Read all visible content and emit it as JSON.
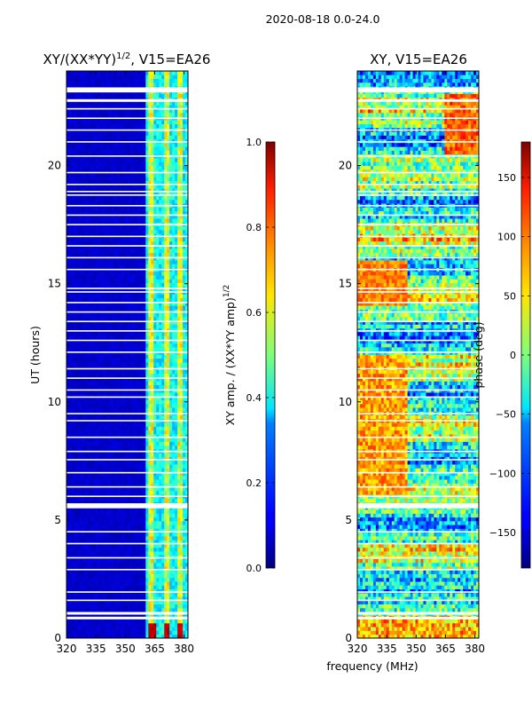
{
  "figure_title": "2020-08-18 0.0-24.0",
  "xlabel": "frequency (MHz)",
  "chart_data": [
    {
      "type": "heatmap",
      "title_main": "XY/(XX*YY)",
      "title_sup": "1/2",
      "title_rest": ", V15=EA26",
      "ylabel": "UT (hours)",
      "xlim": [
        320,
        382
      ],
      "ylim": [
        0,
        24
      ],
      "x_ticks": [
        320,
        335,
        350,
        365,
        380
      ],
      "y_ticks": [
        0,
        5,
        10,
        15,
        20
      ],
      "colorbar": {
        "label": "XY amp. / (XX*YY amp)",
        "label_sup": "1/2",
        "range": [
          0.0,
          1.0
        ],
        "ticks": [
          "0.0",
          "0.2",
          "0.4",
          "0.6",
          "0.8",
          "1.0"
        ],
        "tick_values": [
          0.0,
          0.2,
          0.4,
          0.6,
          0.8,
          1.0
        ],
        "colormap": "jet"
      }
    },
    {
      "type": "heatmap",
      "title": "XY, V15=EA26",
      "ylabel": "phase (deg)",
      "xlim": [
        320,
        382
      ],
      "ylim": [
        0,
        24
      ],
      "x_ticks": [
        320,
        335,
        350,
        365,
        380
      ],
      "y_ticks": [
        0,
        5,
        10,
        15,
        20
      ],
      "colorbar": {
        "label": "phase (deg)",
        "range": [
          -180,
          180
        ],
        "ticks": [
          "−150",
          "−100",
          "−50",
          "0",
          "50",
          "100",
          "150"
        ],
        "tick_values": [
          -150,
          -100,
          -50,
          0,
          50,
          100,
          150
        ],
        "colormap": "jet"
      }
    }
  ],
  "flagged_hours": [
    0.85,
    1.05,
    1.6,
    1.95,
    2.9,
    3.4,
    4.0,
    4.5,
    5.55,
    5.65,
    6.0,
    6.4,
    7.0,
    7.55,
    7.9,
    8.5,
    9.2,
    9.5,
    10.2,
    10.5,
    11.0,
    11.4,
    12.1,
    12.6,
    13.0,
    13.4,
    13.8,
    14.2,
    14.65,
    14.8,
    15.6,
    16.1,
    16.6,
    17.0,
    17.5,
    17.9,
    18.3,
    18.75,
    18.9,
    19.2,
    19.7,
    20.4,
    21.0,
    21.5,
    22.0,
    22.4,
    22.75,
    23.15,
    23.25
  ]
}
